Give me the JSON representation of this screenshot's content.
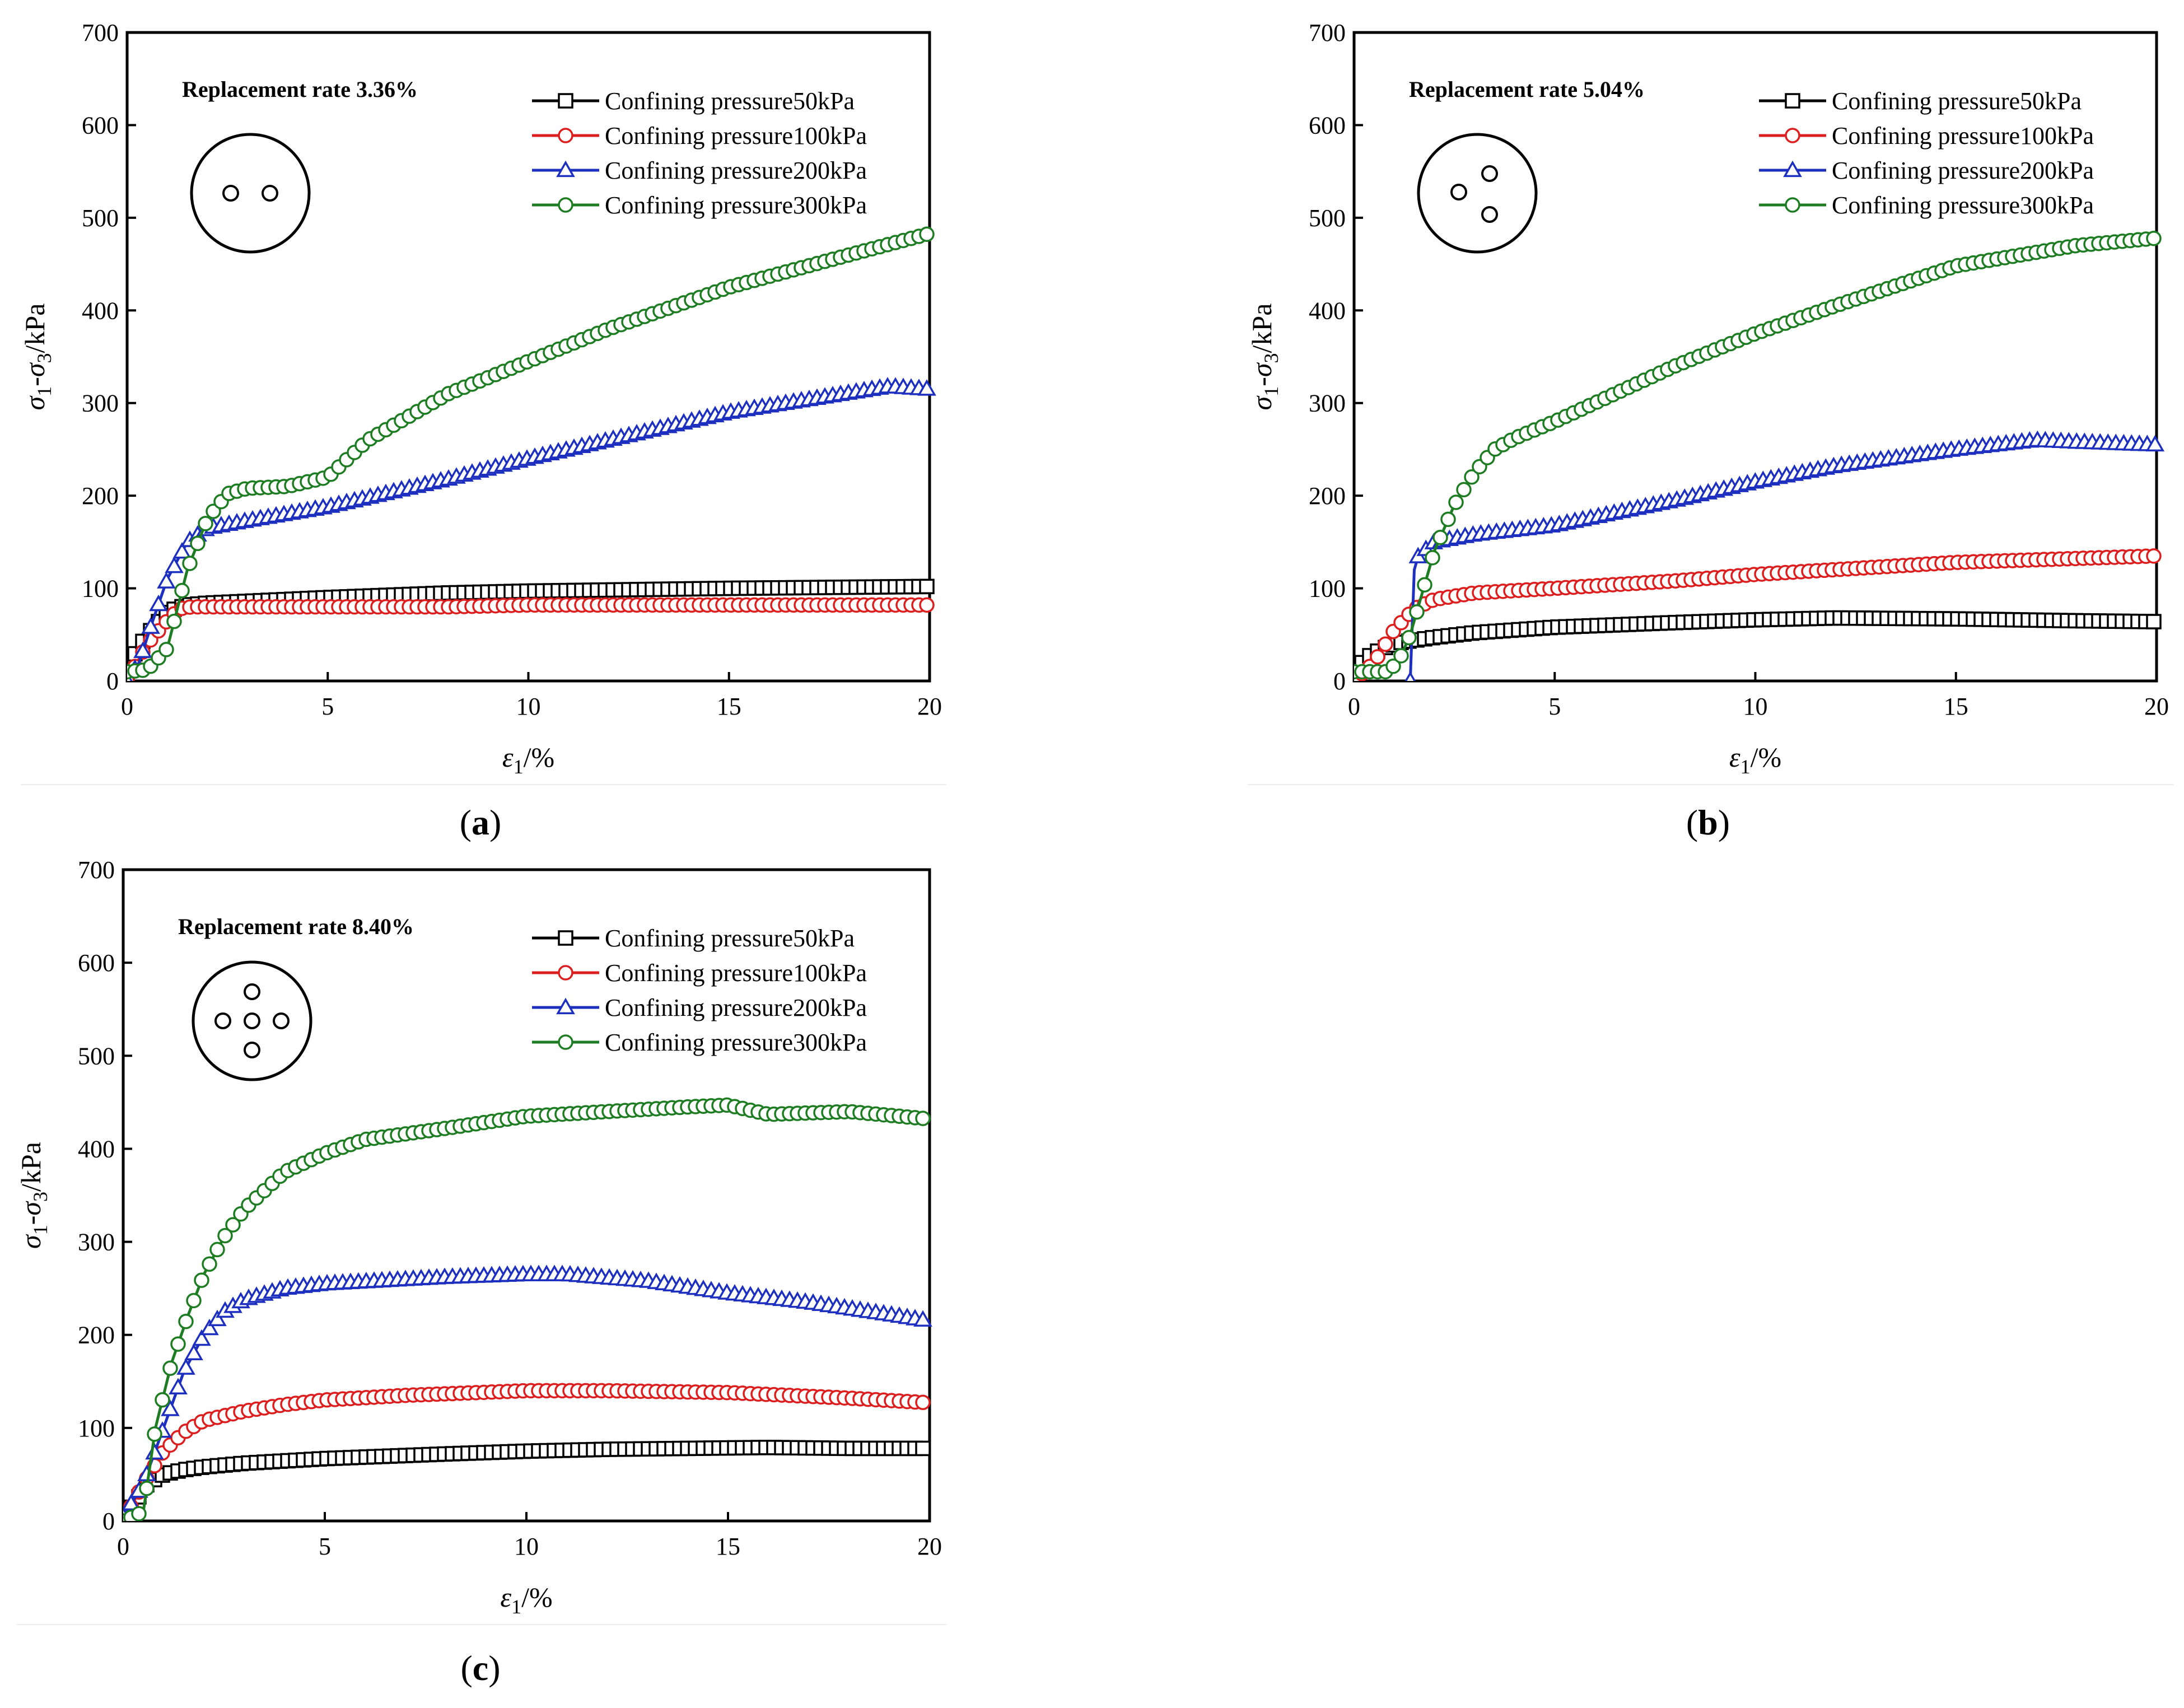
{
  "figure": {
    "panel_labels": [
      "(a)",
      "(b)",
      "(c)"
    ]
  },
  "chart_data": [
    {
      "type": "line",
      "panel": "(a)",
      "annotation": "Replacement rate 3.36%",
      "layout_icon": "two-hole-circle-icon",
      "xlabel": "ε1/%",
      "ylabel": "σ1-σ3/kPa",
      "xlim": [
        0,
        20
      ],
      "ylim": [
        0,
        700
      ],
      "xticks": [
        0,
        5,
        10,
        15,
        20
      ],
      "yticks": [
        0,
        100,
        200,
        300,
        400,
        500,
        600,
        700
      ],
      "legend_position": "top-right",
      "series": [
        {
          "name": "Confining pressure50kPa",
          "color": "#000000",
          "marker": "square",
          "x": [
            0,
            0.2,
            0.5,
            1,
            1.5,
            2,
            3,
            5,
            8,
            10,
            15,
            20
          ],
          "y": [
            0,
            30,
            50,
            75,
            82,
            84,
            86,
            90,
            95,
            97,
            100,
            102
          ]
        },
        {
          "name": "Confining pressure100kPa",
          "color": "#dc1e1e",
          "marker": "circle",
          "x": [
            0,
            0.5,
            1,
            1.3,
            1.6,
            2,
            3,
            5,
            8,
            10,
            15,
            20
          ],
          "y": [
            0,
            40,
            65,
            78,
            80,
            80,
            80,
            80,
            80,
            82,
            82,
            82
          ]
        },
        {
          "name": "Confining pressure200kPa",
          "color": "#1c2fbe",
          "marker": "triangle",
          "x": [
            0,
            0.3,
            0.6,
            1,
            1.5,
            2,
            3,
            5,
            8,
            10,
            15,
            19,
            20
          ],
          "y": [
            0,
            20,
            60,
            110,
            150,
            165,
            173,
            188,
            218,
            240,
            290,
            318,
            315
          ]
        },
        {
          "name": "Confining pressure300kPa",
          "color": "#1e7d23",
          "marker": "circle",
          "x": [
            0,
            0.5,
            1,
            1.5,
            2,
            2.5,
            3,
            4,
            5,
            6,
            8,
            10,
            12,
            15,
            18,
            20
          ],
          "y": [
            10,
            12,
            35,
            120,
            175,
            202,
            208,
            210,
            220,
            260,
            310,
            345,
            380,
            425,
            460,
            483
          ]
        }
      ]
    },
    {
      "type": "line",
      "panel": "(b)",
      "annotation": "Replacement rate 5.04%",
      "layout_icon": "three-hole-circle-icon",
      "xlabel": "ε1/%",
      "ylabel": "σ1-σ3/kPa",
      "xlim": [
        0,
        20
      ],
      "ylim": [
        0,
        700
      ],
      "xticks": [
        0,
        5,
        10,
        15,
        20
      ],
      "yticks": [
        0,
        100,
        200,
        300,
        400,
        500,
        600,
        700
      ],
      "legend_position": "top-right",
      "series": [
        {
          "name": "Confining pressure50kPa",
          "color": "#000000",
          "marker": "square",
          "x": [
            0,
            0.3,
            0.7,
            1.2,
            2,
            3,
            5,
            8,
            10,
            12,
            15,
            18,
            20
          ],
          "y": [
            10,
            25,
            35,
            42,
            47,
            52,
            58,
            63,
            66,
            68,
            67,
            65,
            64
          ]
        },
        {
          "name": "Confining pressure100kPa",
          "color": "#dc1e1e",
          "marker": "circle",
          "x": [
            0,
            0.5,
            1,
            1.5,
            2,
            3,
            5,
            8,
            10,
            15,
            20
          ],
          "y": [
            0,
            20,
            55,
            78,
            88,
            95,
            100,
            108,
            115,
            128,
            135
          ]
        },
        {
          "name": "Confining pressure200kPa",
          "color": "#1c2fbe",
          "marker": "triangle",
          "x": [
            1.4,
            1.5,
            1.6,
            2,
            3,
            5,
            8,
            10,
            12,
            15,
            17,
            18,
            20
          ],
          "y": [
            0,
            120,
            135,
            150,
            158,
            168,
            195,
            215,
            232,
            250,
            260,
            258,
            255
          ]
        },
        {
          "name": "Confining pressure300kPa",
          "color": "#1e7d23",
          "marker": "circle",
          "x": [
            0,
            0.8,
            1.1,
            1.4,
            1.7,
            2,
            2.5,
            3,
            3.5,
            4,
            5,
            6,
            8,
            10,
            12,
            15,
            18,
            20
          ],
          "y": [
            10,
            10,
            20,
            50,
            95,
            140,
            190,
            225,
            250,
            262,
            280,
            300,
            340,
            375,
            405,
            448,
            470,
            478
          ]
        }
      ]
    },
    {
      "type": "line",
      "panel": "(c)",
      "annotation": "Replacement rate 8.40%",
      "layout_icon": "five-hole-circle-icon",
      "xlabel": "ε1/%",
      "ylabel": "σ1-σ3/kPa",
      "xlim": [
        0,
        20
      ],
      "ylim": [
        0,
        700
      ],
      "xticks": [
        0,
        5,
        10,
        15,
        20
      ],
      "yticks": [
        0,
        100,
        200,
        300,
        400,
        500,
        600,
        700
      ],
      "legend_position": "top-right",
      "series": [
        {
          "name": "Confining pressure50kPa",
          "color": "#000000",
          "marker": "square",
          "x": [
            0,
            0.3,
            0.6,
            1,
            1.5,
            2,
            3,
            5,
            8,
            10,
            12,
            14,
            16,
            18,
            20
          ],
          "y": [
            5,
            20,
            40,
            50,
            55,
            58,
            62,
            67,
            72,
            75,
            77,
            78,
            79,
            78,
            78
          ]
        },
        {
          "name": "Confining pressure100kPa",
          "color": "#dc1e1e",
          "marker": "circle",
          "x": [
            0,
            0.5,
            1,
            1.5,
            2,
            3,
            4,
            5,
            7,
            10,
            12,
            15,
            18,
            20
          ],
          "y": [
            0,
            40,
            75,
            95,
            108,
            118,
            125,
            130,
            135,
            140,
            140,
            138,
            132,
            127
          ]
        },
        {
          "name": "Confining pressure200kPa",
          "color": "#1c2fbe",
          "marker": "triangle",
          "x": [
            0,
            0.5,
            1,
            1.5,
            2,
            2.5,
            3,
            4,
            5,
            8,
            10,
            11,
            13,
            15,
            17,
            19,
            20
          ],
          "y": [
            5,
            40,
            100,
            160,
            200,
            225,
            238,
            250,
            255,
            262,
            265,
            265,
            258,
            245,
            235,
            222,
            215
          ]
        },
        {
          "name": "Confining pressure300kPa",
          "color": "#1e7d23",
          "marker": "circle",
          "x": [
            0,
            0.5,
            0.8,
            1.2,
            1.6,
            2,
            2.5,
            3,
            4,
            5,
            6,
            8,
            10,
            12,
            14,
            15,
            16,
            18,
            20
          ],
          "y": [
            0,
            10,
            100,
            170,
            220,
            265,
            305,
            335,
            375,
            395,
            410,
            422,
            435,
            440,
            445,
            447,
            437,
            440,
            432
          ]
        }
      ]
    }
  ]
}
